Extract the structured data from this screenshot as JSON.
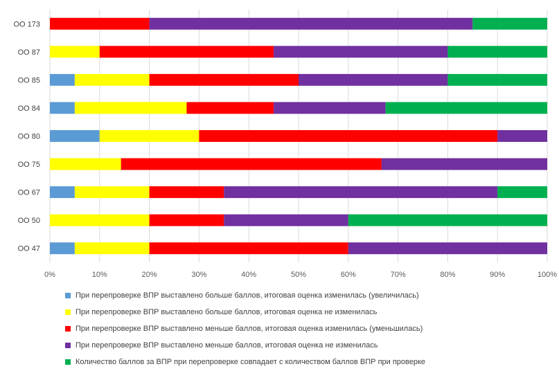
{
  "chart_data": {
    "type": "bar",
    "orientation": "horizontal",
    "stacked": "percent",
    "categories": [
      "ОО 173",
      "ОО 87",
      "ОО 85",
      "ОО 84",
      "ОО 80",
      "ОО 75",
      "ОО 67",
      "ОО 50",
      "ОО 47"
    ],
    "xlim": [
      0,
      100
    ],
    "xticks": [
      "0%",
      "10%",
      "20%",
      "30%",
      "40%",
      "50%",
      "60%",
      "70%",
      "80%",
      "90%",
      "100%"
    ],
    "grid": true,
    "legend_position": "bottom",
    "series": [
      {
        "name": "При перепроверке ВПР выставлено больше баллов, итоговая оценка изменилась (увеличилась)",
        "color": "#5b9bd5",
        "values": [
          0,
          0,
          5,
          5,
          10,
          0,
          5,
          0,
          5
        ]
      },
      {
        "name": "При перепроверке ВПР выставлено больше баллов, итоговая оценка не изменилась",
        "color": "#ffff00",
        "values": [
          0,
          10,
          15,
          22.5,
          20,
          14.3,
          15,
          20,
          15
        ]
      },
      {
        "name": "При перепроверке ВПР выставлено меньше баллов, итоговая оценка изменилась (уменьшилась)",
        "color": "#ff0000",
        "values": [
          20,
          35,
          30,
          17.5,
          60,
          52.4,
          15,
          15,
          40
        ]
      },
      {
        "name": "При перепроверке ВПР выставлено меньше баллов, итоговая оценка не изменилась",
        "color": "#7030a0",
        "values": [
          65,
          35,
          30,
          22.5,
          10,
          33.3,
          55,
          25,
          40
        ]
      },
      {
        "name": "Количество баллов за ВПР при перепроверке совпадает с количеством баллов ВПР при проверке",
        "color": "#00b050",
        "values": [
          15,
          20,
          20,
          32.5,
          0,
          0,
          10,
          40,
          0
        ]
      }
    ]
  }
}
